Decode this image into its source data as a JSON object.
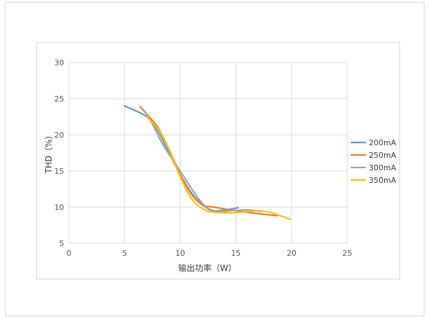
{
  "chart_data": {
    "type": "line",
    "title": "",
    "xlabel": "输出功率（W）",
    "ylabel": "THD（%）",
    "xlim": [
      0,
      25
    ],
    "ylim": [
      5,
      30
    ],
    "x_ticks": [
      "0",
      "5",
      "10",
      "15",
      "20",
      "25"
    ],
    "y_ticks": [
      "5",
      "10",
      "15",
      "20",
      "25",
      "30"
    ],
    "grid": true,
    "legend_position": "right",
    "series": [
      {
        "name": "200mA",
        "color": "#5b9bd5",
        "points": [
          [
            5.0,
            24.0
          ],
          [
            7.0,
            22.5
          ],
          [
            8.0,
            20.5
          ],
          [
            9.0,
            17.5
          ],
          [
            10.0,
            14.5
          ],
          [
            11.0,
            12.0
          ],
          [
            12.0,
            10.3
          ],
          [
            13.0,
            9.5
          ],
          [
            14.0,
            9.6
          ],
          [
            15.2,
            9.9
          ]
        ]
      },
      {
        "name": "250mA",
        "color": "#ed7d31",
        "points": [
          [
            6.4,
            23.9
          ],
          [
            7.2,
            22.5
          ],
          [
            8.0,
            21.0
          ],
          [
            9.0,
            18.0
          ],
          [
            10.0,
            14.5
          ],
          [
            11.0,
            11.8
          ],
          [
            12.0,
            10.3
          ],
          [
            13.0,
            10.0
          ],
          [
            15.0,
            9.5
          ],
          [
            17.0,
            9.1
          ],
          [
            18.7,
            8.8
          ]
        ]
      },
      {
        "name": "300mA",
        "color": "#a5a5a5",
        "points": [
          [
            6.8,
            23.3
          ],
          [
            7.5,
            21.5
          ],
          [
            8.5,
            18.5
          ],
          [
            10.0,
            15.0
          ],
          [
            11.0,
            12.6
          ],
          [
            12.0,
            10.5
          ],
          [
            13.0,
            9.4
          ],
          [
            14.5,
            9.5
          ],
          [
            16.0,
            9.6
          ],
          [
            17.2,
            9.4
          ]
        ]
      },
      {
        "name": "350mA",
        "color": "#ffc000",
        "points": [
          [
            7.0,
            22.5
          ],
          [
            8.0,
            20.8
          ],
          [
            9.0,
            18.0
          ],
          [
            10.0,
            14.2
          ],
          [
            11.0,
            11.2
          ],
          [
            12.0,
            9.8
          ],
          [
            13.0,
            9.3
          ],
          [
            14.5,
            9.2
          ],
          [
            15.5,
            9.3
          ],
          [
            17.0,
            9.5
          ],
          [
            18.0,
            9.3
          ],
          [
            19.0,
            8.8
          ],
          [
            19.9,
            8.3
          ]
        ]
      }
    ]
  }
}
